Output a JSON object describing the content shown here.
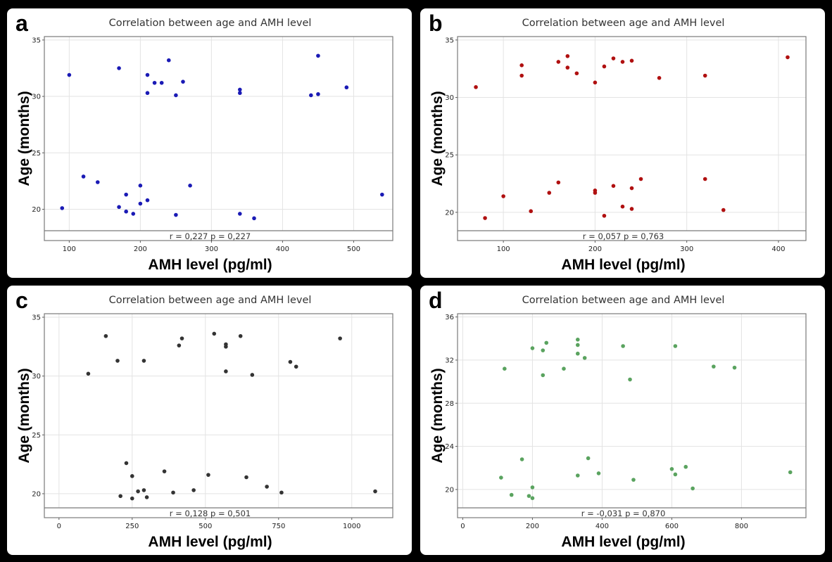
{
  "chart_data": [
    {
      "panel_label": "a",
      "type": "scatter",
      "title": "Correlation between age and AMH level",
      "xlabel": "AMH level (pg/ml)",
      "ylabel": "Age (months)",
      "xlim": [
        65,
        555
      ],
      "ylim": [
        18.1,
        35.3
      ],
      "plot_ylim_bottom_data": 18.1,
      "stat_strip_floor": 17.3,
      "xticks": [
        100,
        200,
        300,
        400,
        500
      ],
      "yticks": [
        20,
        25,
        30,
        35
      ],
      "grid": true,
      "point_color": "#1a1ab5",
      "annotation": "r = 0,227  p = 0,227",
      "points": [
        [
          90,
          20.1
        ],
        [
          120,
          22.9
        ],
        [
          140,
          22.4
        ],
        [
          170,
          20.2
        ],
        [
          180,
          21.3
        ],
        [
          180,
          19.8
        ],
        [
          190,
          19.6
        ],
        [
          200,
          22.1
        ],
        [
          200,
          20.5
        ],
        [
          210,
          20.8
        ],
        [
          250,
          19.5
        ],
        [
          270,
          22.1
        ],
        [
          340,
          19.6
        ],
        [
          360,
          19.2
        ],
        [
          540,
          21.3
        ],
        [
          100,
          31.9
        ],
        [
          170,
          32.5
        ],
        [
          210,
          31.9
        ],
        [
          220,
          31.2
        ],
        [
          230,
          31.2
        ],
        [
          240,
          33.2
        ],
        [
          260,
          31.3
        ],
        [
          210,
          30.3
        ],
        [
          250,
          30.1
        ],
        [
          340,
          30.6
        ],
        [
          340,
          30.3
        ],
        [
          440,
          30.1
        ],
        [
          450,
          30.2
        ],
        [
          450,
          33.6
        ],
        [
          490,
          30.8
        ]
      ]
    },
    {
      "panel_label": "b",
      "type": "scatter",
      "title": "Correlation between age and AMH level",
      "xlabel": "AMH level (pg/ml)",
      "ylabel": "Age (months)",
      "xlim": [
        50,
        430
      ],
      "ylim": [
        18.4,
        35.3
      ],
      "plot_ylim_bottom_data": 18.4,
      "stat_strip_floor": 17.6,
      "xticks": [
        100,
        200,
        300,
        400
      ],
      "yticks": [
        20,
        25,
        30,
        35
      ],
      "grid": true,
      "point_color": "#b01010",
      "annotation": "r = 0,057  p = 0,763",
      "points": [
        [
          70,
          30.9
        ],
        [
          120,
          32.8
        ],
        [
          120,
          31.9
        ],
        [
          160,
          33.1
        ],
        [
          170,
          33.6
        ],
        [
          170,
          32.6
        ],
        [
          180,
          32.1
        ],
        [
          200,
          31.3
        ],
        [
          210,
          32.7
        ],
        [
          220,
          33.4
        ],
        [
          230,
          33.1
        ],
        [
          240,
          33.2
        ],
        [
          270,
          31.7
        ],
        [
          320,
          31.9
        ],
        [
          410,
          33.5
        ],
        [
          80,
          19.5
        ],
        [
          100,
          21.4
        ],
        [
          130,
          20.1
        ],
        [
          150,
          21.7
        ],
        [
          160,
          22.6
        ],
        [
          200,
          21.9
        ],
        [
          200,
          21.7
        ],
        [
          210,
          19.7
        ],
        [
          220,
          22.3
        ],
        [
          230,
          20.5
        ],
        [
          240,
          22.1
        ],
        [
          240,
          20.3
        ],
        [
          250,
          22.9
        ],
        [
          320,
          22.9
        ],
        [
          340,
          20.2
        ]
      ]
    },
    {
      "panel_label": "c",
      "type": "scatter",
      "title": "Correlation between age and AMH level",
      "xlabel": "AMH level (pg/ml)",
      "ylabel": "Age (months)",
      "xlim": [
        -50,
        1140
      ],
      "ylim": [
        18.8,
        35.3
      ],
      "plot_ylim_bottom_data": 18.8,
      "stat_strip_floor": 18.0,
      "xticks": [
        0,
        250,
        500,
        750,
        1000
      ],
      "yticks": [
        20,
        25,
        30,
        35
      ],
      "grid": true,
      "point_color": "#333333",
      "annotation": "r = 0,128  p = 0,501",
      "points": [
        [
          100,
          30.2
        ],
        [
          160,
          33.4
        ],
        [
          200,
          31.3
        ],
        [
          290,
          31.3
        ],
        [
          410,
          32.6
        ],
        [
          420,
          33.2
        ],
        [
          530,
          33.6
        ],
        [
          570,
          32.7
        ],
        [
          570,
          32.5
        ],
        [
          570,
          30.4
        ],
        [
          620,
          33.4
        ],
        [
          660,
          30.1
        ],
        [
          790,
          31.2
        ],
        [
          810,
          30.8
        ],
        [
          960,
          33.2
        ],
        [
          210,
          19.8
        ],
        [
          230,
          22.6
        ],
        [
          250,
          19.6
        ],
        [
          250,
          21.5
        ],
        [
          270,
          20.2
        ],
        [
          290,
          20.3
        ],
        [
          300,
          19.7
        ],
        [
          360,
          21.9
        ],
        [
          390,
          20.1
        ],
        [
          460,
          20.3
        ],
        [
          510,
          21.6
        ],
        [
          640,
          21.4
        ],
        [
          710,
          20.6
        ],
        [
          760,
          20.1
        ],
        [
          1080,
          20.2
        ]
      ]
    },
    {
      "panel_label": "d",
      "type": "scatter",
      "title": "Correlation between age and AMH level",
      "xlabel": "AMH level (pg/ml)",
      "ylabel": "Age (months)",
      "xlim": [
        -15,
        985
      ],
      "ylim": [
        18.3,
        36.3
      ],
      "plot_ylim_bottom_data": 18.3,
      "stat_strip_floor": 17.5,
      "xticks": [
        0,
        200,
        400,
        600,
        800
      ],
      "yticks": [
        20,
        24,
        28,
        32,
        36
      ],
      "grid": true,
      "point_color": "#5aa35f",
      "annotation": "r = -0,031  p = 0,870",
      "points": [
        [
          120,
          31.2
        ],
        [
          200,
          33.1
        ],
        [
          230,
          32.9
        ],
        [
          240,
          33.6
        ],
        [
          230,
          30.6
        ],
        [
          290,
          31.2
        ],
        [
          330,
          33.9
        ],
        [
          330,
          33.4
        ],
        [
          330,
          32.6
        ],
        [
          350,
          32.2
        ],
        [
          460,
          33.3
        ],
        [
          480,
          30.2
        ],
        [
          610,
          33.3
        ],
        [
          720,
          31.4
        ],
        [
          780,
          31.3
        ],
        [
          110,
          21.1
        ],
        [
          140,
          19.5
        ],
        [
          170,
          22.8
        ],
        [
          190,
          19.4
        ],
        [
          200,
          20.2
        ],
        [
          200,
          19.2
        ],
        [
          330,
          21.3
        ],
        [
          360,
          22.9
        ],
        [
          390,
          21.5
        ],
        [
          490,
          20.9
        ],
        [
          600,
          21.9
        ],
        [
          610,
          21.4
        ],
        [
          640,
          22.1
        ],
        [
          660,
          20.1
        ],
        [
          940,
          21.6
        ]
      ]
    }
  ]
}
